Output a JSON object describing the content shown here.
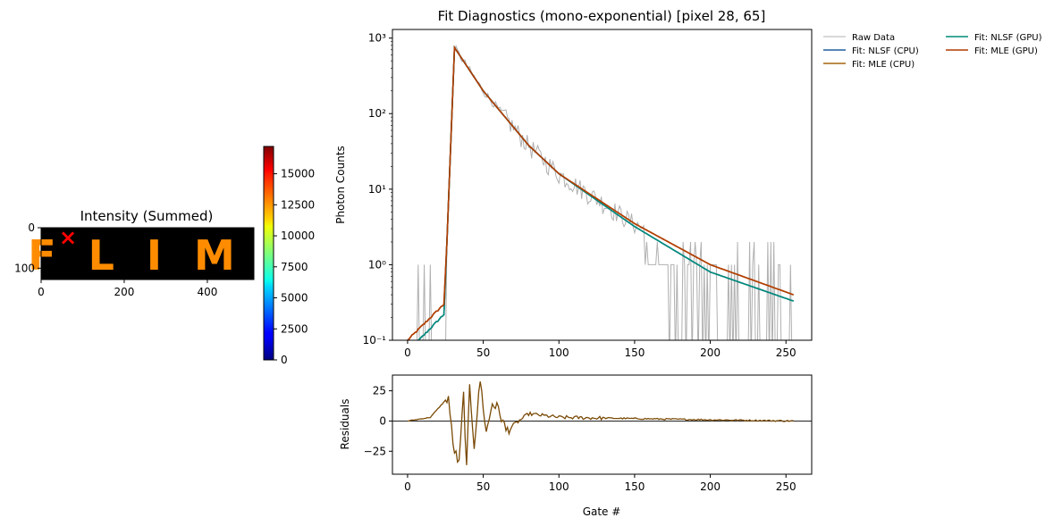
{
  "chart_data": [
    {
      "type": "heatmap",
      "title": "Intensity (Summed)",
      "image_text": "FLIM",
      "colormap": "jet",
      "xlim": [
        0,
        512
      ],
      "ylim": [
        128,
        0
      ],
      "xticks": [
        0,
        200,
        400
      ],
      "yticks": [
        0,
        100
      ],
      "marker": {
        "x": 65,
        "y": 28,
        "symbol": "×",
        "color": "#ff0000"
      },
      "image_intensity": 12000,
      "colorbar": {
        "range": [
          0,
          17200
        ],
        "ticks": [
          0,
          2500,
          5000,
          7500,
          10000,
          12500,
          15000
        ]
      }
    },
    {
      "type": "line",
      "title": "Fit Diagnostics (mono-exponential)  [pixel 28, 65]",
      "xlabel": "",
      "ylabel": "Photon Counts",
      "yscale": "log",
      "xlim": [
        -10,
        267
      ],
      "ylim": [
        0.1,
        1300
      ],
      "xticks": [
        0,
        50,
        100,
        150,
        200,
        250
      ],
      "yticks": [
        0.1,
        1,
        10,
        100,
        1000
      ],
      "ytick_labels": [
        "10⁻¹",
        "10⁰",
        "10¹",
        "10²",
        "10³"
      ],
      "legend_position": "outside right",
      "gates": 256,
      "series": [
        {
          "name": "Raw Data",
          "color": "#b0b0b0",
          "profile": "raw",
          "key_points": [
            [
              0,
              1
            ],
            [
              5,
              0.1
            ],
            [
              15,
              4
            ],
            [
              20,
              0.1
            ],
            [
              24,
              0.3
            ],
            [
              31,
              750
            ],
            [
              40,
              400
            ],
            [
              50,
              205
            ],
            [
              60,
              120
            ],
            [
              70,
              70
            ],
            [
              80,
              40
            ],
            [
              100,
              16
            ],
            [
              150,
              3.5
            ],
            [
              200,
              1
            ],
            [
              250,
              0.35
            ]
          ]
        },
        {
          "name": "Fit: NLSF (CPU)",
          "color": "#1f5f9f",
          "profile": "gpu_fit"
        },
        {
          "name": "Fit: MLE (CPU)",
          "color": "#a5650f",
          "profile": "cpu_fit"
        },
        {
          "name": "Fit: NLSF (GPU)",
          "color": "#008b7a",
          "profile": "gpu_fit"
        },
        {
          "name": "Fit: MLE (GPU)",
          "color": "#b33c00",
          "profile": "cpu_fit"
        }
      ],
      "fit_key_points": {
        "cpu": [
          [
            0,
            0.1
          ],
          [
            24,
            0.3
          ],
          [
            26,
            2
          ],
          [
            31,
            750
          ],
          [
            50,
            200
          ],
          [
            80,
            38
          ],
          [
            100,
            16
          ],
          [
            150,
            3.5
          ],
          [
            200,
            1
          ],
          [
            255,
            0.4
          ]
        ],
        "gpu": [
          [
            0,
            0.07
          ],
          [
            24,
            0.22
          ],
          [
            26,
            2
          ],
          [
            31,
            750
          ],
          [
            50,
            200
          ],
          [
            80,
            38
          ],
          [
            100,
            16
          ],
          [
            150,
            3.2
          ],
          [
            200,
            0.8
          ],
          [
            255,
            0.33
          ]
        ]
      }
    },
    {
      "type": "line",
      "title": "",
      "xlabel": "Gate #",
      "ylabel": "Residuals",
      "xlim": [
        -10,
        267
      ],
      "ylim": [
        -44,
        38
      ],
      "xticks": [
        0,
        50,
        100,
        150,
        200,
        250
      ],
      "yticks": [
        -25,
        0,
        25
      ],
      "ytick_labels": [
        "−25",
        "0",
        "25"
      ],
      "zero_line": true,
      "color": "#7a4a06",
      "key_points": [
        [
          0,
          0
        ],
        [
          15,
          3
        ],
        [
          27,
          20
        ],
        [
          30,
          -20
        ],
        [
          34,
          -36
        ],
        [
          37,
          22
        ],
        [
          39,
          -40
        ],
        [
          41,
          28
        ],
        [
          44,
          -20
        ],
        [
          48,
          34
        ],
        [
          52,
          -10
        ],
        [
          56,
          15
        ],
        [
          60,
          10
        ],
        [
          65,
          -8
        ],
        [
          80,
          6
        ],
        [
          100,
          3
        ],
        [
          150,
          2
        ],
        [
          200,
          1
        ],
        [
          255,
          0
        ]
      ]
    }
  ]
}
